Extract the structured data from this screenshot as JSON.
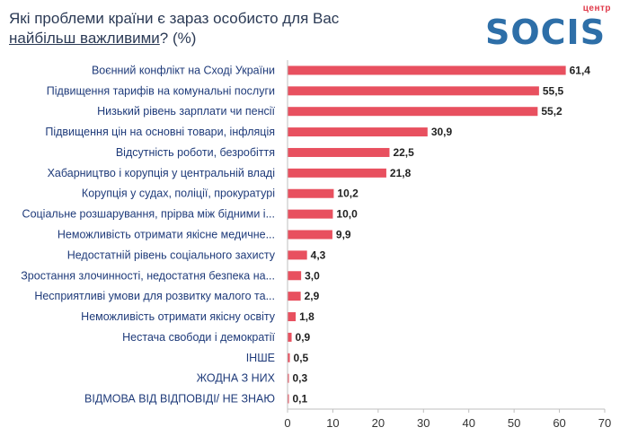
{
  "header": {
    "title_line1": "Які проблеми країни є зараз особисто для Вас",
    "title_line2_underlined": "найбільш важливими",
    "title_line2_rest": "? (%)"
  },
  "logo": {
    "small_word": "центр",
    "brand": "SOCIS"
  },
  "colors": {
    "bar": "#e8505f",
    "axis": "#bfbfbf",
    "label": "#1f3b7a"
  },
  "chart_data": {
    "type": "bar",
    "orientation": "horizontal",
    "categories": [
      "Воєнний конфлікт на Сході України",
      "Підвищення тарифів на комунальні послуги",
      "Низький рівень зарплати чи пенсії",
      "Підвищення цін на основні товари, інфляція",
      "Відсутність роботи, безробіття",
      "Хабарництво і корупція у центральній владі",
      "Корупція у судах, поліції, прокуратурі",
      "Соціальне розшарування, прірва між бідними і...",
      "Неможливість отримати якісне медичне...",
      "Недостатній рівень соціального захисту",
      "Зростання злочинності, недостатня безпека на...",
      "Несприятливі умови для розвитку малого та...",
      "Неможливість отримати якісну освіту",
      "Нестача свободи і демократії",
      "ІНШЕ",
      "ЖОДНА З НИХ",
      "ВІДМОВА ВІД ВІДПОВІДІ/ НЕ ЗНАЮ"
    ],
    "values": [
      61.4,
      55.5,
      55.2,
      30.9,
      22.5,
      21.8,
      10.2,
      10.0,
      9.9,
      4.3,
      3.0,
      2.9,
      1.8,
      0.9,
      0.5,
      0.3,
      0.1
    ],
    "value_labels": [
      "61,4",
      "55,5",
      "55,2",
      "30,9",
      "22,5",
      "21,8",
      "10,2",
      "10,0",
      "9,9",
      "4,3",
      "3,0",
      "2,9",
      "1,8",
      "0,9",
      "0,5",
      "0,3",
      "0,1"
    ],
    "xlim": [
      0,
      70
    ],
    "xticks": [
      0,
      10,
      20,
      30,
      40,
      50,
      60,
      70
    ],
    "grid": false,
    "legend": "none"
  }
}
